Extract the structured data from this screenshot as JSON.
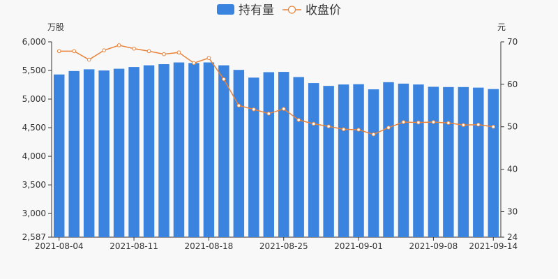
{
  "chart_data": {
    "type": "bar",
    "legend": {
      "position": "top-center",
      "entries": [
        {
          "label": "持有量",
          "kind": "bar"
        },
        {
          "label": "收盘价",
          "kind": "line"
        }
      ]
    },
    "left_axis": {
      "unit": "万股",
      "ylim": [
        2587,
        6000
      ],
      "ticks": [
        "2,587",
        "3,000",
        "3,500",
        "4,000",
        "4,500",
        "5,000",
        "5,500",
        "6,000"
      ],
      "tick_values": [
        2587,
        3000,
        3500,
        4000,
        4500,
        5000,
        5500,
        6000
      ]
    },
    "right_axis": {
      "unit": "元",
      "ylim": [
        24,
        70
      ],
      "ticks": [
        "24",
        "30",
        "40",
        "50",
        "60",
        "70"
      ],
      "tick_values": [
        24,
        30,
        40,
        50,
        60,
        70
      ]
    },
    "x_tick_labels": [
      {
        "label": "2021-08-04",
        "index": 0
      },
      {
        "label": "2021-08-11",
        "index": 5
      },
      {
        "label": "2021-08-18",
        "index": 10
      },
      {
        "label": "2021-08-25",
        "index": 15
      },
      {
        "label": "2021-09-01",
        "index": 20
      },
      {
        "label": "2021-09-08",
        "index": 25
      },
      {
        "label": "2021-09-14",
        "index": 29
      }
    ],
    "x": [
      "2021-08-04",
      "2021-08-05",
      "2021-08-06",
      "2021-08-09",
      "2021-08-10",
      "2021-08-11",
      "2021-08-12",
      "2021-08-13",
      "2021-08-16",
      "2021-08-17",
      "2021-08-18",
      "2021-08-19",
      "2021-08-20",
      "2021-08-23",
      "2021-08-24",
      "2021-08-25",
      "2021-08-26",
      "2021-08-27",
      "2021-08-30",
      "2021-08-31",
      "2021-09-01",
      "2021-09-02",
      "2021-09-03",
      "2021-09-06",
      "2021-09-07",
      "2021-09-08",
      "2021-09-09",
      "2021-09-10",
      "2021-09-13",
      "2021-09-14"
    ],
    "series": [
      {
        "name": "持有量",
        "type": "bar",
        "axis": "left",
        "color": "#3a84e0",
        "values": [
          5430,
          5490,
          5520,
          5500,
          5530,
          5560,
          5590,
          5610,
          5640,
          5630,
          5640,
          5590,
          5510,
          5375,
          5470,
          5475,
          5385,
          5280,
          5230,
          5255,
          5260,
          5170,
          5295,
          5270,
          5255,
          5215,
          5210,
          5210,
          5200,
          5175
        ]
      },
      {
        "name": "收盘价",
        "type": "line",
        "axis": "right",
        "color": "#e9833a",
        "values": [
          67.8,
          67.8,
          65.8,
          68.0,
          69.2,
          68.4,
          67.8,
          67.1,
          67.5,
          65.0,
          66.2,
          61.2,
          55.0,
          54.1,
          53.1,
          54.2,
          51.6,
          50.7,
          50.1,
          49.4,
          49.3,
          48.2,
          49.8,
          51.1,
          51.0,
          51.1,
          50.9,
          50.4,
          50.5,
          50.0
        ]
      }
    ]
  }
}
